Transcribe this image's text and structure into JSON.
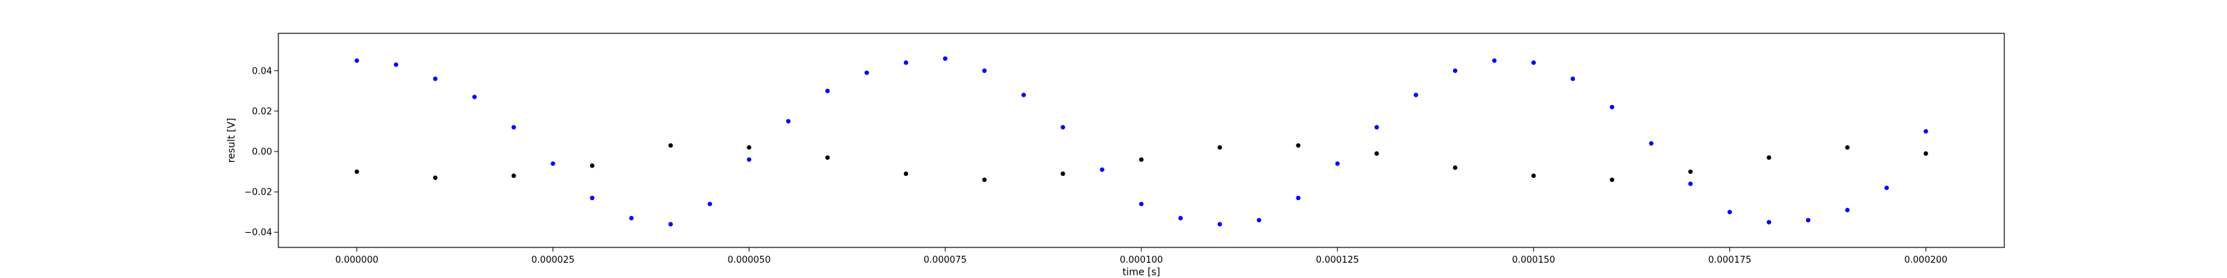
{
  "chart_data": {
    "type": "scatter",
    "xlabel": "time [s]",
    "ylabel": "result [V]",
    "xlim": [
      -1e-05,
      0.00021
    ],
    "ylim": [
      -0.0475,
      0.0585
    ],
    "xticks": [
      0,
      2.5e-05,
      5e-05,
      7.5e-05,
      0.0001,
      0.000125,
      0.00015,
      0.000175,
      0.0002
    ],
    "xtick_labels": [
      "0.000000",
      "0.000025",
      "0.000050",
      "0.000075",
      "0.000100",
      "0.000125",
      "0.000150",
      "0.000175",
      "0.000200"
    ],
    "yticks": [
      -0.04,
      -0.02,
      0.0,
      0.02,
      0.04
    ],
    "ytick_labels": [
      "−0.04",
      "−0.02",
      "0.00",
      "0.02",
      "0.04"
    ],
    "grid": false,
    "series": [
      {
        "color": "#0000ff",
        "x": [
          0,
          5e-06,
          1e-05,
          1.5e-05,
          2e-05,
          2.5e-05,
          3e-05,
          3.5e-05,
          4e-05,
          4.5e-05,
          5e-05,
          5.5e-05,
          6e-05,
          6.5e-05,
          7e-05,
          7.5e-05,
          8e-05,
          8.5e-05,
          9e-05,
          9.5e-05,
          0.0001,
          0.000105,
          0.00011,
          0.000115,
          0.00012,
          0.000125,
          0.00013,
          0.000135,
          0.00014,
          0.000145,
          0.00015,
          0.000155,
          0.00016,
          0.000165,
          0.00017,
          0.000175,
          0.00018,
          0.000185,
          0.00019,
          0.000195,
          0.0002
        ],
        "y": [
          0.045,
          0.043,
          0.036,
          0.027,
          0.012,
          -0.006,
          -0.023,
          -0.033,
          -0.036,
          -0.026,
          -0.004,
          0.015,
          0.03,
          0.039,
          0.044,
          0.046,
          0.04,
          0.028,
          0.012,
          -0.009,
          -0.026,
          -0.033,
          -0.036,
          -0.034,
          -0.023,
          -0.006,
          0.012,
          0.028,
          0.04,
          0.045,
          0.044,
          0.036,
          0.022,
          0.004,
          -0.016,
          -0.03,
          -0.035,
          -0.034,
          -0.029,
          -0.018,
          0.01
        ]
      },
      {
        "color": "#000000",
        "x": [
          0,
          1e-05,
          2e-05,
          3e-05,
          4e-05,
          5e-05,
          6e-05,
          7e-05,
          8e-05,
          9e-05,
          0.0001,
          0.00011,
          0.00012,
          0.00013,
          0.00014,
          0.00015,
          0.00016,
          0.00017,
          0.00018,
          0.00019,
          0.0002
        ],
        "y": [
          -0.01,
          -0.013,
          -0.012,
          -0.007,
          0.003,
          0.002,
          -0.003,
          -0.011,
          -0.014,
          -0.011,
          -0.004,
          0.002,
          0.003,
          -0.001,
          -0.008,
          -0.012,
          -0.014,
          -0.01,
          -0.003,
          0.002,
          -0.001
        ]
      }
    ]
  }
}
